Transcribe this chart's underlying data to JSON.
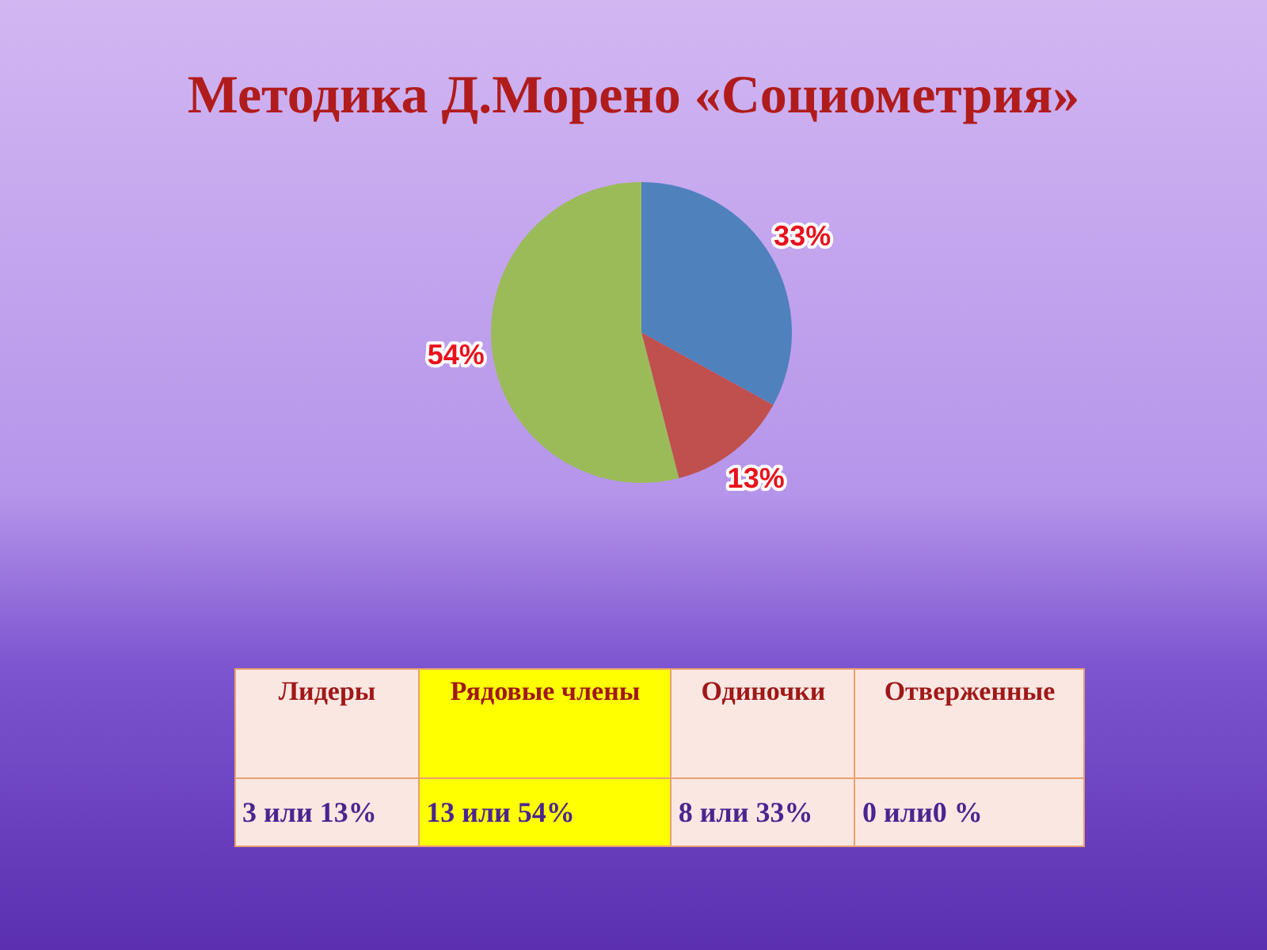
{
  "chart_data": {
    "type": "pie",
    "title": "Методика Д.Морено «Социометрия»",
    "categories": [
      null,
      null,
      null
    ],
    "values": [
      33,
      13,
      54
    ],
    "colors": [
      "#4f81bd",
      "#c0504d",
      "#9bbb59"
    ],
    "value_labels": [
      "33%",
      "13%",
      "54%"
    ],
    "annotations": [
      "Лидеры",
      "Рядовые члены",
      "Одиночки",
      "Отверженные",
      "3 или 13%",
      "13  или  54%",
      "8  или 33%",
      "0 или0 %"
    ]
  }
}
